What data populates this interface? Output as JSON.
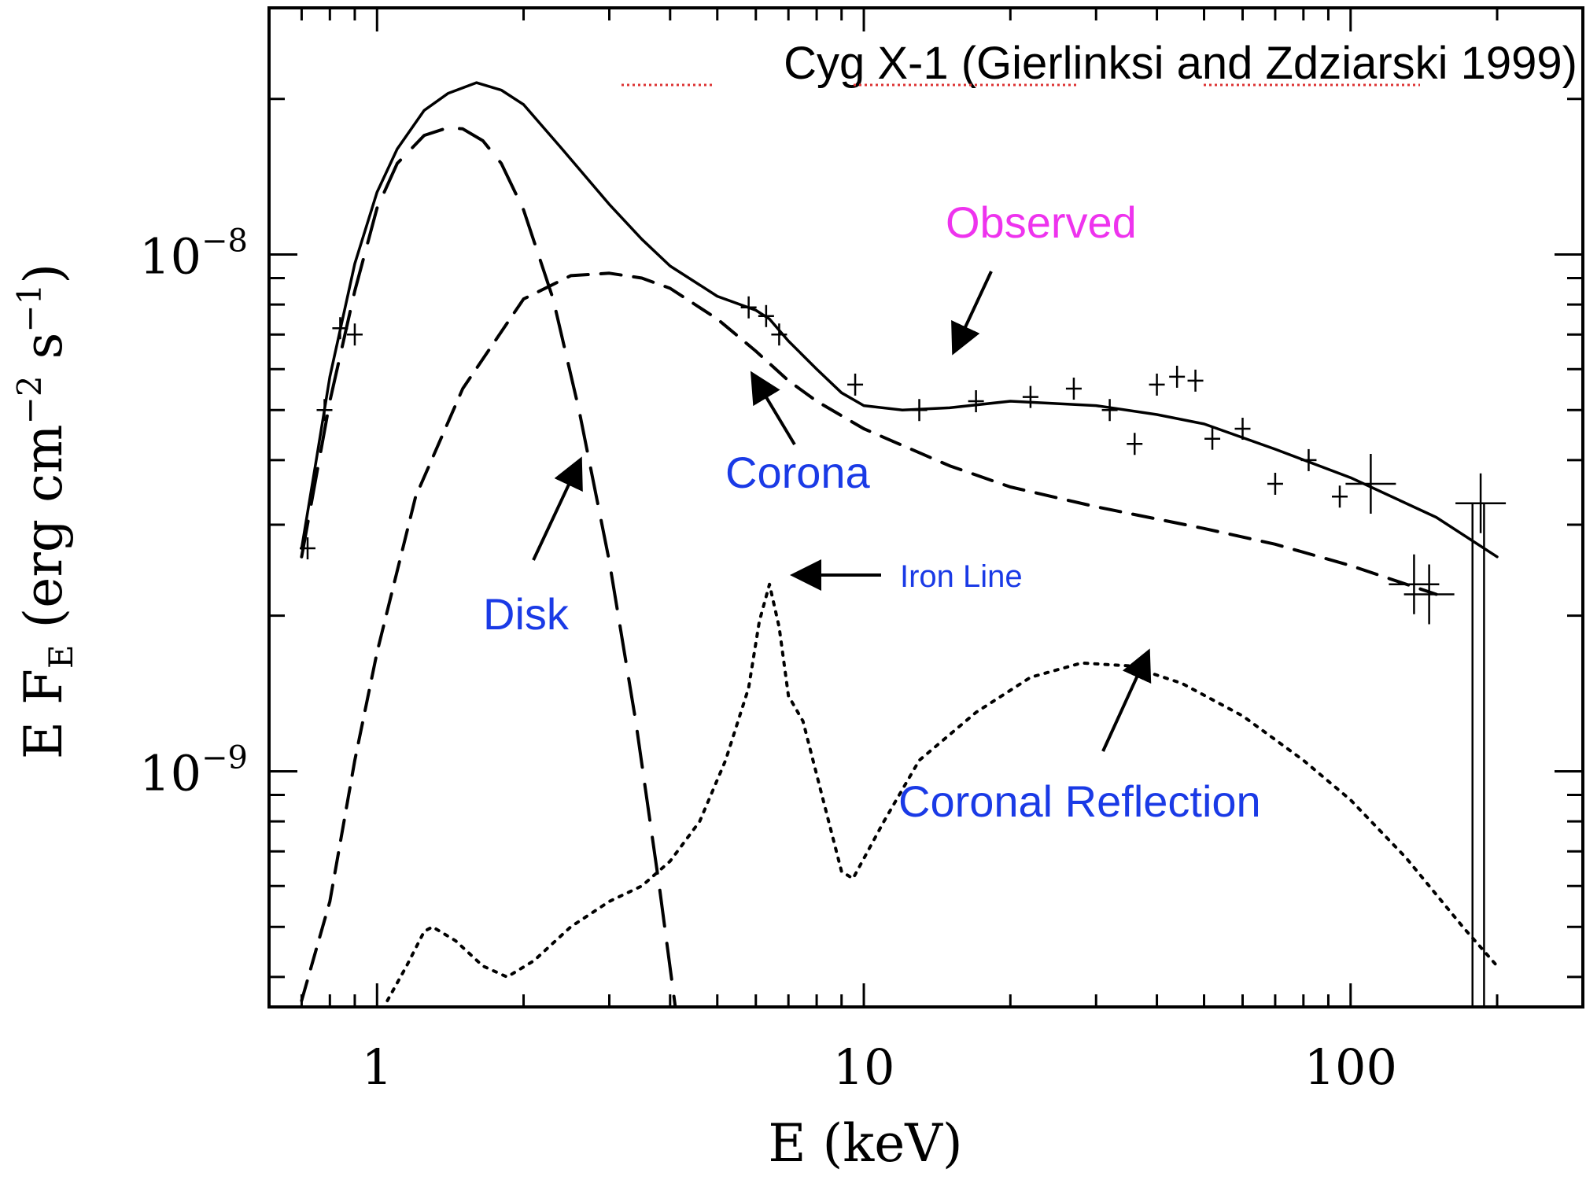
{
  "chart_data": {
    "type": "line",
    "title": "Cyg X-1 (Gierlinksi and Zdziarski 1999)",
    "xlabel": "E (keV)",
    "ylabel": "E F_E (erg cm^-2 s^-1)",
    "x_scale": "log",
    "y_scale": "log",
    "xlim": [
      0.6,
      300
    ],
    "ylim": [
      3.5e-10,
      3e-08
    ],
    "x_ticks": [
      1,
      10,
      100
    ],
    "y_ticks": [
      1e-09,
      1e-08
    ],
    "x_tick_labels": [
      "1",
      "10",
      "100"
    ],
    "y_tick_labels": [
      {
        "base": "10",
        "exp": "−9"
      },
      {
        "base": "10",
        "exp": "−8"
      }
    ],
    "ylabel_parts": {
      "e": "E F",
      "e_sub": "E",
      "paren_open": " (erg cm",
      "cm_exp": "−2",
      "s": " s",
      "s_exp": "−1",
      "paren_close": ")"
    },
    "grid": false,
    "series": [
      {
        "name": "Observed",
        "style": "solid",
        "x": [
          0.7,
          0.75,
          0.8,
          0.9,
          1.0,
          1.1,
          1.25,
          1.4,
          1.6,
          1.8,
          2.0,
          2.4,
          3.0,
          3.5,
          4.0,
          5.0,
          6.0,
          6.4,
          7.0,
          8.0,
          9.0,
          10,
          12,
          15,
          20,
          30,
          40,
          50,
          70,
          100,
          150,
          200
        ],
        "y": [
          2.7e-09,
          4e-09,
          5.8e-09,
          9.6e-09,
          1.32e-08,
          1.6e-08,
          1.9e-08,
          2.05e-08,
          2.15e-08,
          2.08e-08,
          1.95e-08,
          1.6e-08,
          1.25e-08,
          1.07e-08,
          9.5e-09,
          8.3e-09,
          7.8e-09,
          7.5e-09,
          6.8e-09,
          6e-09,
          5.4e-09,
          5.1e-09,
          5e-09,
          5.05e-09,
          5.2e-09,
          5.1e-09,
          4.9e-09,
          4.7e-09,
          4.2e-09,
          3.7e-09,
          3.1e-09,
          2.6e-09
        ]
      },
      {
        "name": "Disk",
        "style": "long-dash",
        "x": [
          0.7,
          0.8,
          0.9,
          1.0,
          1.1,
          1.25,
          1.4,
          1.5,
          1.65,
          1.8,
          2.0,
          2.3,
          2.6,
          3.0,
          3.4,
          3.8,
          4.1
        ],
        "y": [
          2.6e-09,
          5.2e-09,
          8.5e-09,
          1.23e-08,
          1.5e-08,
          1.7e-08,
          1.76e-08,
          1.75e-08,
          1.66e-08,
          1.5e-08,
          1.22e-08,
          8.2e-09,
          5e-09,
          2.55e-09,
          1.25e-09,
          6e-10,
          3.5e-10
        ]
      },
      {
        "name": "Corona",
        "style": "dash",
        "x": [
          0.7,
          0.8,
          0.9,
          1.0,
          1.2,
          1.5,
          2.0,
          2.5,
          3.0,
          3.5,
          4.0,
          5.0,
          6.0,
          7.0,
          8.0,
          10,
          15,
          20,
          30,
          50,
          70,
          100,
          150
        ],
        "y": [
          3.6e-10,
          5.6e-10,
          1.05e-09,
          1.7e-09,
          3.4e-09,
          5.5e-09,
          8.2e-09,
          9.1e-09,
          9.2e-09,
          9e-09,
          8.6e-09,
          7.5e-09,
          6.5e-09,
          5.7e-09,
          5.2e-09,
          4.6e-09,
          3.9e-09,
          3.55e-09,
          3.25e-09,
          2.95e-09,
          2.75e-09,
          2.5e-09,
          2.2e-09
        ]
      },
      {
        "name": "Coronal Reflection",
        "style": "dotted",
        "x": [
          1.05,
          1.15,
          1.25,
          1.3,
          1.45,
          1.65,
          1.85,
          2.1,
          2.5,
          3.0,
          3.5,
          4.0,
          4.6,
          5.2,
          5.8,
          6.1,
          6.4,
          6.7,
          7.0,
          7.5,
          8.2,
          9.0,
          9.5,
          11,
          13,
          17,
          22,
          28,
          35,
          45,
          60,
          80,
          100,
          130,
          170,
          200
        ],
        "y": [
          3.6e-10,
          4.2e-10,
          4.9e-10,
          5e-10,
          4.7e-10,
          4.2e-10,
          4e-10,
          4.3e-10,
          5e-10,
          5.6e-10,
          6e-10,
          6.7e-10,
          8e-10,
          1.05e-09,
          1.45e-09,
          1.95e-09,
          2.3e-09,
          1.9e-09,
          1.4e-09,
          1.25e-09,
          9e-10,
          6.4e-10,
          6.2e-10,
          8e-10,
          1.05e-09,
          1.3e-09,
          1.52e-09,
          1.62e-09,
          1.6e-09,
          1.48e-09,
          1.28e-09,
          1.05e-09,
          8.8e-10,
          6.8e-10,
          5e-10,
          4.2e-10
        ]
      }
    ],
    "data_points": {
      "x": [
        0.72,
        0.78,
        0.84,
        0.9,
        5.8,
        6.3,
        6.7,
        9.6,
        13,
        17,
        22,
        27,
        32,
        36,
        40,
        44,
        48,
        52,
        60,
        70,
        82,
        95,
        110,
        135,
        145,
        185
      ],
      "y": [
        2.7e-09,
        5e-09,
        7.2e-09,
        7e-09,
        7.9e-09,
        7.6e-09,
        7e-09,
        5.6e-09,
        5e-09,
        5.2e-09,
        5.3e-09,
        5.5e-09,
        5e-09,
        4.3e-09,
        5.6e-09,
        5.8e-09,
        5.7e-09,
        4.4e-09,
        4.6e-09,
        3.6e-09,
        4e-09,
        3.4e-09,
        3.6e-09,
        2.3e-09,
        2.2e-09,
        3.3e-09
      ]
    },
    "annotations": [
      {
        "text": "Observed",
        "color": "#ee33ee"
      },
      {
        "text": "Corona",
        "color": "#1a3ae6"
      },
      {
        "text": "Disk",
        "color": "#1a3ae6"
      },
      {
        "text": "Iron Line",
        "color": "#1a3ae6"
      },
      {
        "text": "Coronal Reflection",
        "color": "#1a3ae6"
      }
    ]
  }
}
